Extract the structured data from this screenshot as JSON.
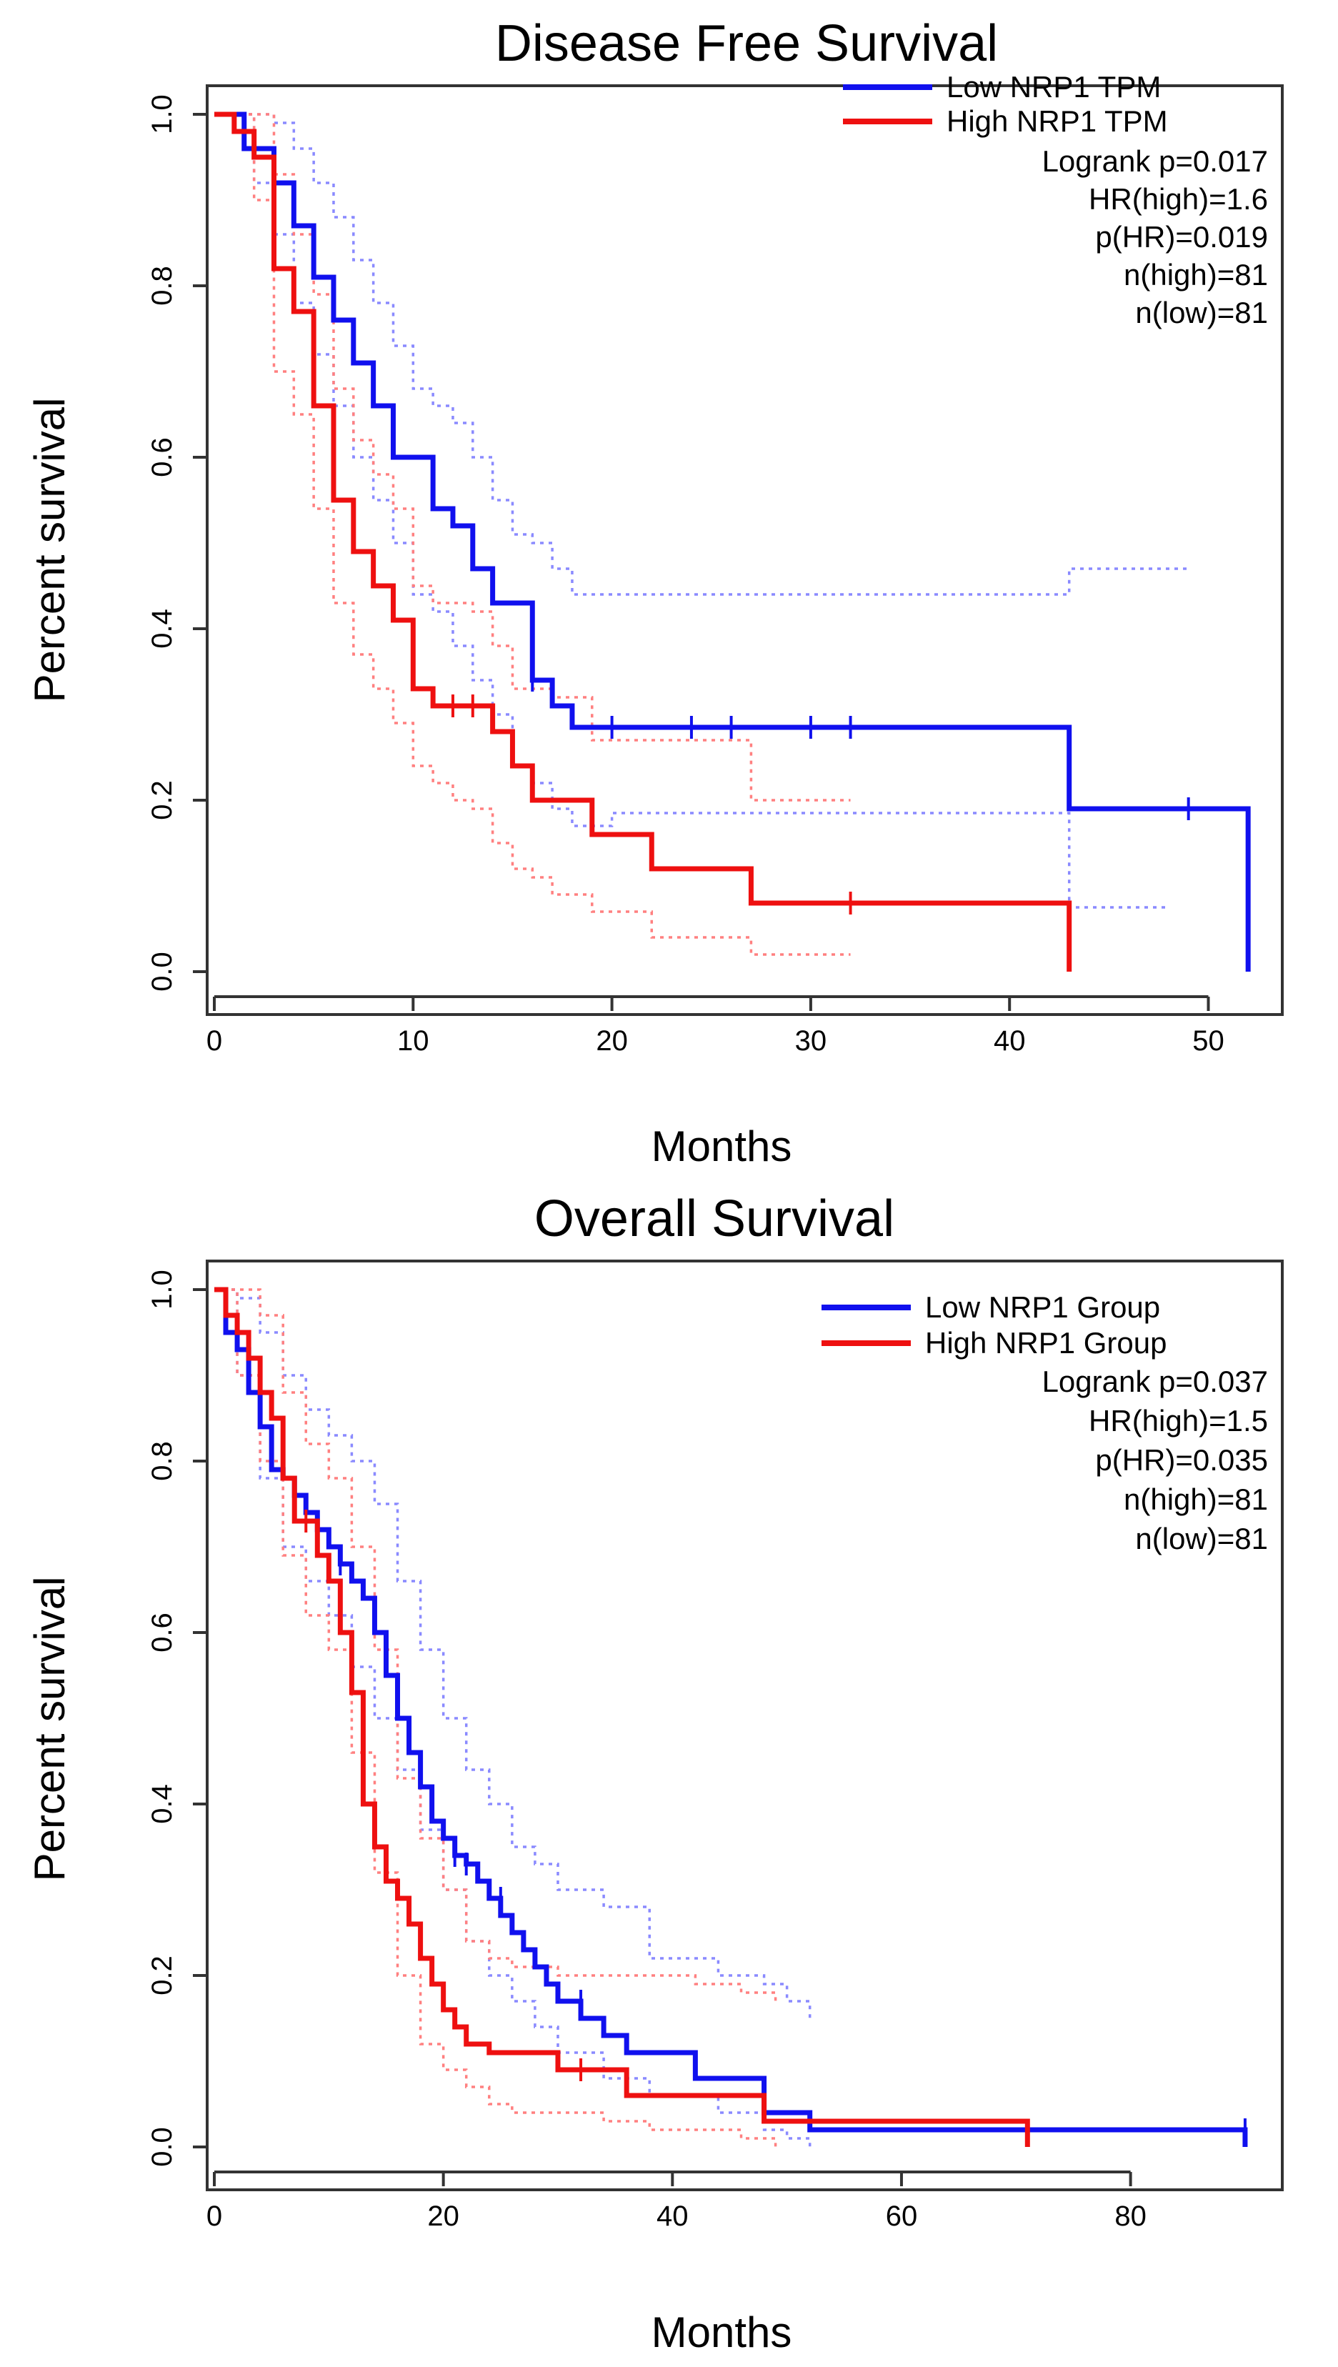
{
  "colors": {
    "low": "#1010ee",
    "high": "#ee1010",
    "low_ci": "#8a8aff",
    "high_ci": "#ff8080"
  },
  "chart_data": [
    {
      "type": "line",
      "title": "Disease Free Survival",
      "xlabel": "Months",
      "ylabel": "Percent survival",
      "xlim": [
        0,
        53
      ],
      "ylim": [
        0,
        1
      ],
      "xticks": [
        "0",
        "10",
        "20",
        "30",
        "40",
        "50"
      ],
      "yticks": [
        "0.0",
        "0.2",
        "0.4",
        "0.6",
        "0.8",
        "1.0"
      ],
      "legend_position": "top-right",
      "legend": {
        "low_label": "Low NRP1 TPM",
        "high_label": "High NRP1 TPM"
      },
      "stats": [
        "Logrank p=0.017",
        "HR(high)=1.6",
        "p(HR)=0.019",
        "n(high)=81",
        "n(low)=81"
      ],
      "series": [
        {
          "name": "Low NRP1 TPM",
          "key": "low",
          "x": [
            0,
            1.5,
            3,
            4,
            5,
            6,
            7,
            8,
            9,
            11,
            12,
            13,
            14,
            16,
            17,
            18,
            43,
            52
          ],
          "y": [
            1.0,
            0.96,
            0.92,
            0.87,
            0.81,
            0.76,
            0.71,
            0.66,
            0.6,
            0.54,
            0.52,
            0.47,
            0.43,
            0.34,
            0.31,
            0.285,
            0.19,
            0.0
          ],
          "censor_x": [
            16,
            20,
            24,
            26,
            30,
            32,
            49
          ],
          "censor_y": [
            0.34,
            0.285,
            0.285,
            0.285,
            0.285,
            0.285,
            0.19
          ],
          "ci_upper_x": [
            0,
            2,
            3,
            4,
            5,
            6,
            7,
            8,
            9,
            10,
            11,
            12,
            13,
            14,
            15,
            16,
            17,
            18,
            43,
            49
          ],
          "ci_upper_y": [
            1.0,
            1.0,
            0.99,
            0.96,
            0.92,
            0.88,
            0.83,
            0.78,
            0.73,
            0.68,
            0.66,
            0.64,
            0.6,
            0.55,
            0.51,
            0.5,
            0.47,
            0.44,
            0.47,
            0.47
          ],
          "ci_lower_x": [
            0,
            2,
            3,
            4,
            5,
            6,
            7,
            8,
            9,
            10,
            11,
            12,
            13,
            14,
            15,
            16,
            17,
            18,
            20,
            43,
            48
          ],
          "ci_lower_y": [
            1.0,
            0.92,
            0.86,
            0.78,
            0.72,
            0.66,
            0.6,
            0.55,
            0.5,
            0.44,
            0.42,
            0.38,
            0.34,
            0.3,
            0.24,
            0.22,
            0.19,
            0.17,
            0.185,
            0.075,
            0.075
          ]
        },
        {
          "name": "High NRP1 TPM",
          "key": "high",
          "x": [
            0,
            1,
            2,
            3,
            4,
            5,
            6,
            7,
            8,
            9,
            10,
            11,
            12,
            13,
            14,
            15,
            16,
            17,
            19,
            22,
            27,
            43
          ],
          "y": [
            1.0,
            0.98,
            0.95,
            0.82,
            0.77,
            0.66,
            0.55,
            0.49,
            0.45,
            0.41,
            0.33,
            0.31,
            0.31,
            0.31,
            0.28,
            0.24,
            0.2,
            0.2,
            0.16,
            0.12,
            0.08,
            0.0
          ],
          "censor_x": [
            12,
            13,
            32
          ],
          "censor_y": [
            0.31,
            0.31,
            0.08
          ],
          "ci_upper_x": [
            0,
            2,
            3,
            4,
            5,
            6,
            7,
            8,
            9,
            10,
            11,
            12,
            13,
            14,
            15,
            16,
            17,
            19,
            22,
            27,
            32
          ],
          "ci_upper_y": [
            1.0,
            1.0,
            0.93,
            0.86,
            0.79,
            0.68,
            0.62,
            0.58,
            0.54,
            0.45,
            0.43,
            0.43,
            0.42,
            0.38,
            0.33,
            0.33,
            0.32,
            0.27,
            0.27,
            0.2,
            0.2
          ],
          "ci_lower_x": [
            0,
            2,
            3,
            4,
            5,
            6,
            7,
            8,
            9,
            10,
            11,
            12,
            13,
            14,
            15,
            16,
            17,
            19,
            22,
            27,
            32
          ],
          "ci_lower_y": [
            1.0,
            0.9,
            0.7,
            0.65,
            0.54,
            0.43,
            0.37,
            0.33,
            0.29,
            0.24,
            0.22,
            0.2,
            0.19,
            0.15,
            0.12,
            0.11,
            0.09,
            0.07,
            0.04,
            0.02,
            0.02
          ]
        }
      ]
    },
    {
      "type": "line",
      "title": "Overall Survival",
      "xlabel": "Months",
      "ylabel": "Percent survival",
      "xlim": [
        0,
        92
      ],
      "ylim": [
        0,
        1
      ],
      "xticks": [
        "0",
        "20",
        "40",
        "60",
        "80"
      ],
      "yticks": [
        "0.0",
        "0.2",
        "0.4",
        "0.6",
        "0.8",
        "1.0"
      ],
      "legend_position": "top-right",
      "legend": {
        "low_label": "Low NRP1 Group",
        "high_label": "High NRP1 Group"
      },
      "stats": [
        "Logrank p=0.037",
        "HR(high)=1.5",
        "p(HR)=0.035",
        "n(high)=81",
        "n(low)=81"
      ],
      "series": [
        {
          "name": "Low NRP1 Group",
          "key": "low",
          "x": [
            0,
            1,
            2,
            3,
            4,
            5,
            6,
            7,
            8,
            9,
            10,
            11,
            12,
            13,
            14,
            15,
            16,
            17,
            18,
            19,
            20,
            21,
            22,
            23,
            24,
            25,
            26,
            27,
            28,
            29,
            30,
            32,
            34,
            36,
            42,
            48,
            52,
            90
          ],
          "y": [
            1.0,
            0.95,
            0.93,
            0.88,
            0.84,
            0.79,
            0.78,
            0.76,
            0.74,
            0.72,
            0.7,
            0.68,
            0.66,
            0.64,
            0.6,
            0.55,
            0.5,
            0.46,
            0.42,
            0.38,
            0.36,
            0.34,
            0.33,
            0.31,
            0.29,
            0.27,
            0.25,
            0.23,
            0.21,
            0.19,
            0.17,
            0.15,
            0.13,
            0.11,
            0.08,
            0.04,
            0.02,
            0.0
          ],
          "censor_x": [
            7,
            11,
            21,
            22,
            25,
            32,
            90
          ],
          "censor_y": [
            0.76,
            0.68,
            0.34,
            0.33,
            0.29,
            0.17,
            0.02
          ],
          "ci_upper_x": [
            0,
            2,
            4,
            6,
            8,
            10,
            12,
            14,
            16,
            18,
            20,
            22,
            24,
            26,
            28,
            30,
            34,
            38,
            44,
            48,
            50,
            52
          ],
          "ci_upper_y": [
            1.0,
            0.99,
            0.95,
            0.9,
            0.86,
            0.83,
            0.8,
            0.75,
            0.66,
            0.58,
            0.5,
            0.44,
            0.4,
            0.35,
            0.33,
            0.3,
            0.28,
            0.22,
            0.2,
            0.19,
            0.17,
            0.15
          ],
          "ci_lower_x": [
            0,
            2,
            4,
            6,
            8,
            10,
            12,
            14,
            16,
            18,
            20,
            22,
            24,
            26,
            28,
            30,
            34,
            38,
            44,
            48,
            50,
            52
          ],
          "ci_lower_y": [
            1.0,
            0.9,
            0.78,
            0.7,
            0.66,
            0.62,
            0.56,
            0.5,
            0.44,
            0.37,
            0.3,
            0.24,
            0.2,
            0.17,
            0.14,
            0.11,
            0.08,
            0.06,
            0.04,
            0.02,
            0.01,
            0.0
          ]
        },
        {
          "name": "High NRP1 Group",
          "key": "high",
          "x": [
            0,
            1,
            2,
            3,
            4,
            5,
            6,
            7,
            8,
            9,
            10,
            11,
            12,
            13,
            14,
            15,
            16,
            17,
            18,
            19,
            20,
            21,
            22,
            24,
            30,
            32,
            36,
            48,
            71
          ],
          "y": [
            1.0,
            0.97,
            0.95,
            0.92,
            0.88,
            0.85,
            0.78,
            0.73,
            0.73,
            0.69,
            0.66,
            0.6,
            0.53,
            0.4,
            0.35,
            0.31,
            0.29,
            0.26,
            0.22,
            0.19,
            0.16,
            0.14,
            0.12,
            0.11,
            0.09,
            0.09,
            0.06,
            0.03,
            0.0
          ],
          "censor_x": [
            8,
            32
          ],
          "censor_y": [
            0.73,
            0.09
          ],
          "ci_upper_x": [
            0,
            2,
            4,
            6,
            8,
            10,
            12,
            14,
            16,
            18,
            20,
            22,
            24,
            26,
            30,
            34,
            38,
            42,
            46,
            49
          ],
          "ci_upper_y": [
            1.0,
            1.0,
            0.97,
            0.88,
            0.82,
            0.78,
            0.7,
            0.58,
            0.43,
            0.36,
            0.3,
            0.24,
            0.22,
            0.21,
            0.2,
            0.2,
            0.2,
            0.19,
            0.18,
            0.17
          ],
          "ci_lower_x": [
            0,
            2,
            4,
            6,
            8,
            10,
            12,
            14,
            16,
            18,
            20,
            22,
            24,
            26,
            30,
            34,
            38,
            42,
            46,
            49
          ],
          "ci_lower_y": [
            1.0,
            0.9,
            0.8,
            0.69,
            0.62,
            0.58,
            0.46,
            0.32,
            0.2,
            0.12,
            0.09,
            0.07,
            0.05,
            0.04,
            0.04,
            0.03,
            0.02,
            0.02,
            0.01,
            0.0
          ]
        }
      ]
    }
  ]
}
